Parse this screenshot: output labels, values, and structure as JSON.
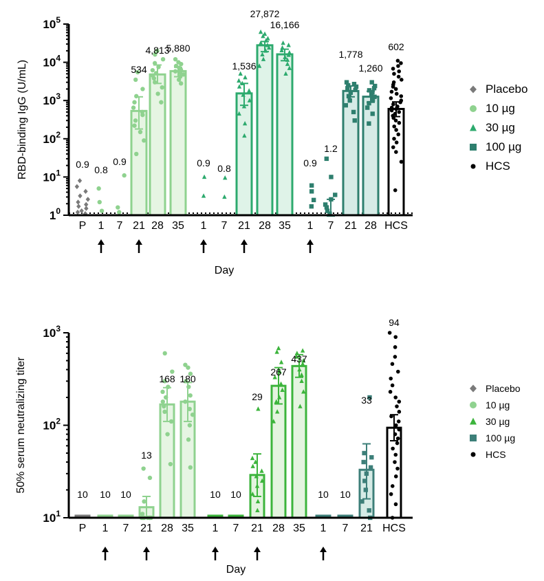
{
  "colors": {
    "placebo": "#7a7a7a",
    "g10": "#8fd28f",
    "g10_fill": "#e6f5e3",
    "g30": "#2daa6e",
    "g30_fill": "#dff3e8",
    "g100": "#2e7f6e",
    "g100_fill": "#d6ebe6",
    "hcs": "#000000",
    "n30": "#3cb43c",
    "n30_fill": "#e4f4e0",
    "n100": "#3d7f79"
  },
  "chart_data": [
    {
      "type": "bar",
      "ylabel": "RBD-binding IgG (U/mL)",
      "xlabel": "Day",
      "yscale": "log",
      "ylim": [
        1,
        100000
      ],
      "ytick_labels": [
        {
          "base": "1",
          "exp": "0"
        },
        {
          "base": "10",
          "exp": "1"
        },
        {
          "base": "10",
          "exp": "2"
        },
        {
          "base": "10",
          "exp": "3"
        },
        {
          "base": "10",
          "exp": "4"
        },
        {
          "base": "10",
          "exp": "5"
        }
      ],
      "lloq_line": true,
      "grid": false,
      "legend": {
        "position": "right",
        "entries": [
          "Placebo",
          "10 µg",
          "30 µg",
          "100 µg",
          "HCS"
        ]
      },
      "categories": [
        "P",
        "1",
        "7",
        "21",
        "28",
        "35",
        "1",
        "7",
        "21",
        "28",
        "35",
        "1",
        "7",
        "21",
        "28",
        "HCS"
      ],
      "groups": [
        "placebo",
        "g10",
        "g10",
        "g10",
        "g10",
        "g10",
        "g30",
        "g30",
        "g30",
        "g30",
        "g30",
        "g100",
        "g100",
        "g100",
        "g100",
        "hcs"
      ],
      "values": [
        0.9,
        0.8,
        0.9,
        534,
        4813,
        5880,
        0.9,
        0.8,
        1536,
        27872,
        16166,
        0.9,
        1.2,
        1778,
        1260,
        602
      ],
      "value_labels": [
        "0.9",
        "0.8",
        "0.9",
        "534",
        "4,813",
        "5,880",
        "0.9",
        "0.8",
        "1,536",
        "27,872",
        "16,166",
        "0.9",
        "1.2",
        "1,778",
        "1,260",
        "602"
      ],
      "show_bar": [
        false,
        false,
        false,
        true,
        true,
        true,
        false,
        false,
        true,
        true,
        true,
        false,
        false,
        true,
        true,
        true
      ],
      "ci_low": [
        null,
        null,
        null,
        180,
        2800,
        4200,
        null,
        null,
        750,
        19000,
        11000,
        null,
        0.95,
        1250,
        900,
        380
      ],
      "ci_high": [
        null,
        null,
        null,
        1250,
        8500,
        7400,
        null,
        null,
        2800,
        35000,
        22000,
        null,
        2.6,
        2400,
        1750,
        920
      ],
      "points": [
        [
          1.1,
          1.2,
          1.3,
          1.5,
          1.7,
          1.9,
          2.2,
          2.6,
          3.2,
          4.2,
          5.6,
          8
        ],
        [
          1.3,
          2.2,
          5
        ],
        [
          1.2,
          1.6,
          11
        ],
        [
          40,
          90,
          150,
          220,
          300,
          420,
          500,
          650,
          900,
          1300,
          2000,
          3500,
          5500
        ],
        [
          900,
          1500,
          2200,
          3000,
          3800,
          4500,
          5200,
          6200,
          7500,
          9500,
          12000,
          16000,
          20000
        ],
        [
          2800,
          3500,
          4200,
          4800,
          5300,
          5800,
          6400,
          7200,
          8000,
          9000,
          10000,
          12000
        ],
        [
          3.2,
          10
        ],
        [
          3,
          9.5
        ],
        [
          120,
          250,
          450,
          700,
          1000,
          1400,
          1800,
          2300,
          2800,
          3300,
          4000,
          5000
        ],
        [
          8000,
          12000,
          16000,
          20000,
          24000,
          28000,
          32000,
          37000,
          42000,
          48000,
          55000,
          62000
        ],
        [
          5000,
          7000,
          9000,
          11500,
          13500,
          15500,
          18000,
          20500,
          24000,
          28000,
          32000
        ],
        [
          1.7,
          2.5,
          4.2,
          6
        ],
        [
          1.1,
          1.3,
          1.6,
          1.9,
          2.6,
          3.4,
          10,
          30
        ],
        [
          300,
          500,
          750,
          1000,
          1300,
          1600,
          1900,
          2100,
          2300,
          2500,
          2700,
          3000
        ],
        [
          250,
          450,
          650,
          850,
          1050,
          1250,
          1450,
          1650,
          1850,
          2100,
          2400,
          3000
        ],
        [
          4.5,
          25,
          45,
          60,
          80,
          100,
          130,
          170,
          210,
          260,
          300,
          350,
          400,
          450,
          500,
          550,
          600,
          650,
          700,
          800,
          900,
          1000,
          1150,
          1300,
          1500,
          1700,
          2000,
          2300,
          2600,
          3000,
          3500,
          4200,
          5000,
          5800,
          6800,
          8000,
          9500,
          11000
        ]
      ],
      "arrows": [
        1,
        3,
        6,
        8,
        11
      ]
    },
    {
      "type": "bar",
      "ylabel": "50% serum neutralizing titer",
      "xlabel": "Day",
      "yscale": "log",
      "ylim": [
        10,
        1000
      ],
      "ytick_labels": [
        {
          "base": "10",
          "exp": "1"
        },
        {
          "base": "10",
          "exp": "2"
        },
        {
          "base": "10",
          "exp": "3"
        }
      ],
      "grid": false,
      "legend": {
        "position": "right",
        "entries": [
          "Placebo",
          "10 µg",
          "30 µg",
          "100 µg",
          "HCS"
        ]
      },
      "categories": [
        "P",
        "1",
        "7",
        "21",
        "28",
        "35",
        "1",
        "7",
        "21",
        "28",
        "35",
        "1",
        "7",
        "21",
        "HCS"
      ],
      "groups": [
        "placebo",
        "g10",
        "g10",
        "g10",
        "g10",
        "g10",
        "n30",
        "n30",
        "n30",
        "n30",
        "n30",
        "n100",
        "n100",
        "n100",
        "hcs"
      ],
      "values": [
        10,
        10,
        10,
        13,
        168,
        180,
        10,
        10,
        29,
        267,
        437,
        10,
        10,
        33,
        94
      ],
      "value_labels": [
        "10",
        "10",
        "10",
        "13",
        "168",
        "180",
        "10",
        "10",
        "29",
        "267",
        "437",
        "10",
        "10",
        "33",
        "94"
      ],
      "ci_low": [
        null,
        null,
        null,
        10,
        110,
        110,
        null,
        null,
        17,
        170,
        330,
        null,
        null,
        16,
        68
      ],
      "ci_high": [
        null,
        null,
        null,
        17,
        255,
        290,
        null,
        null,
        49,
        420,
        580,
        null,
        null,
        63,
        130
      ],
      "points": [
        [],
        [],
        [],
        [
          10,
          10,
          10,
          10,
          10,
          10,
          10,
          10,
          11,
          15,
          27,
          34
        ],
        [
          38,
          80,
          110,
          140,
          160,
          180,
          200,
          230,
          260,
          300,
          380,
          600
        ],
        [
          35,
          70,
          100,
          130,
          150,
          180,
          210,
          260,
          300,
          360,
          420,
          450
        ],
        [],
        [],
        [
          12,
          15,
          18,
          22,
          25,
          28,
          32,
          36,
          40,
          44,
          150
        ],
        [
          110,
          140,
          180,
          200,
          240,
          280,
          330,
          380,
          480,
          620,
          680
        ],
        [
          160,
          230,
          300,
          350,
          400,
          460,
          500,
          550,
          600,
          640
        ],
        [],
        [],
        [
          10,
          12,
          15,
          20,
          25,
          30,
          35,
          40,
          45,
          50,
          200
        ],
        [
          10,
          14,
          18,
          22,
          28,
          34,
          40,
          48,
          56,
          64,
          72,
          80,
          90,
          100,
          110,
          125,
          140,
          160,
          180,
          200,
          230,
          270,
          320,
          380,
          460,
          550,
          700,
          900,
          1000
        ]
      ],
      "arrows": [
        1,
        3,
        6,
        8,
        11
      ]
    }
  ]
}
